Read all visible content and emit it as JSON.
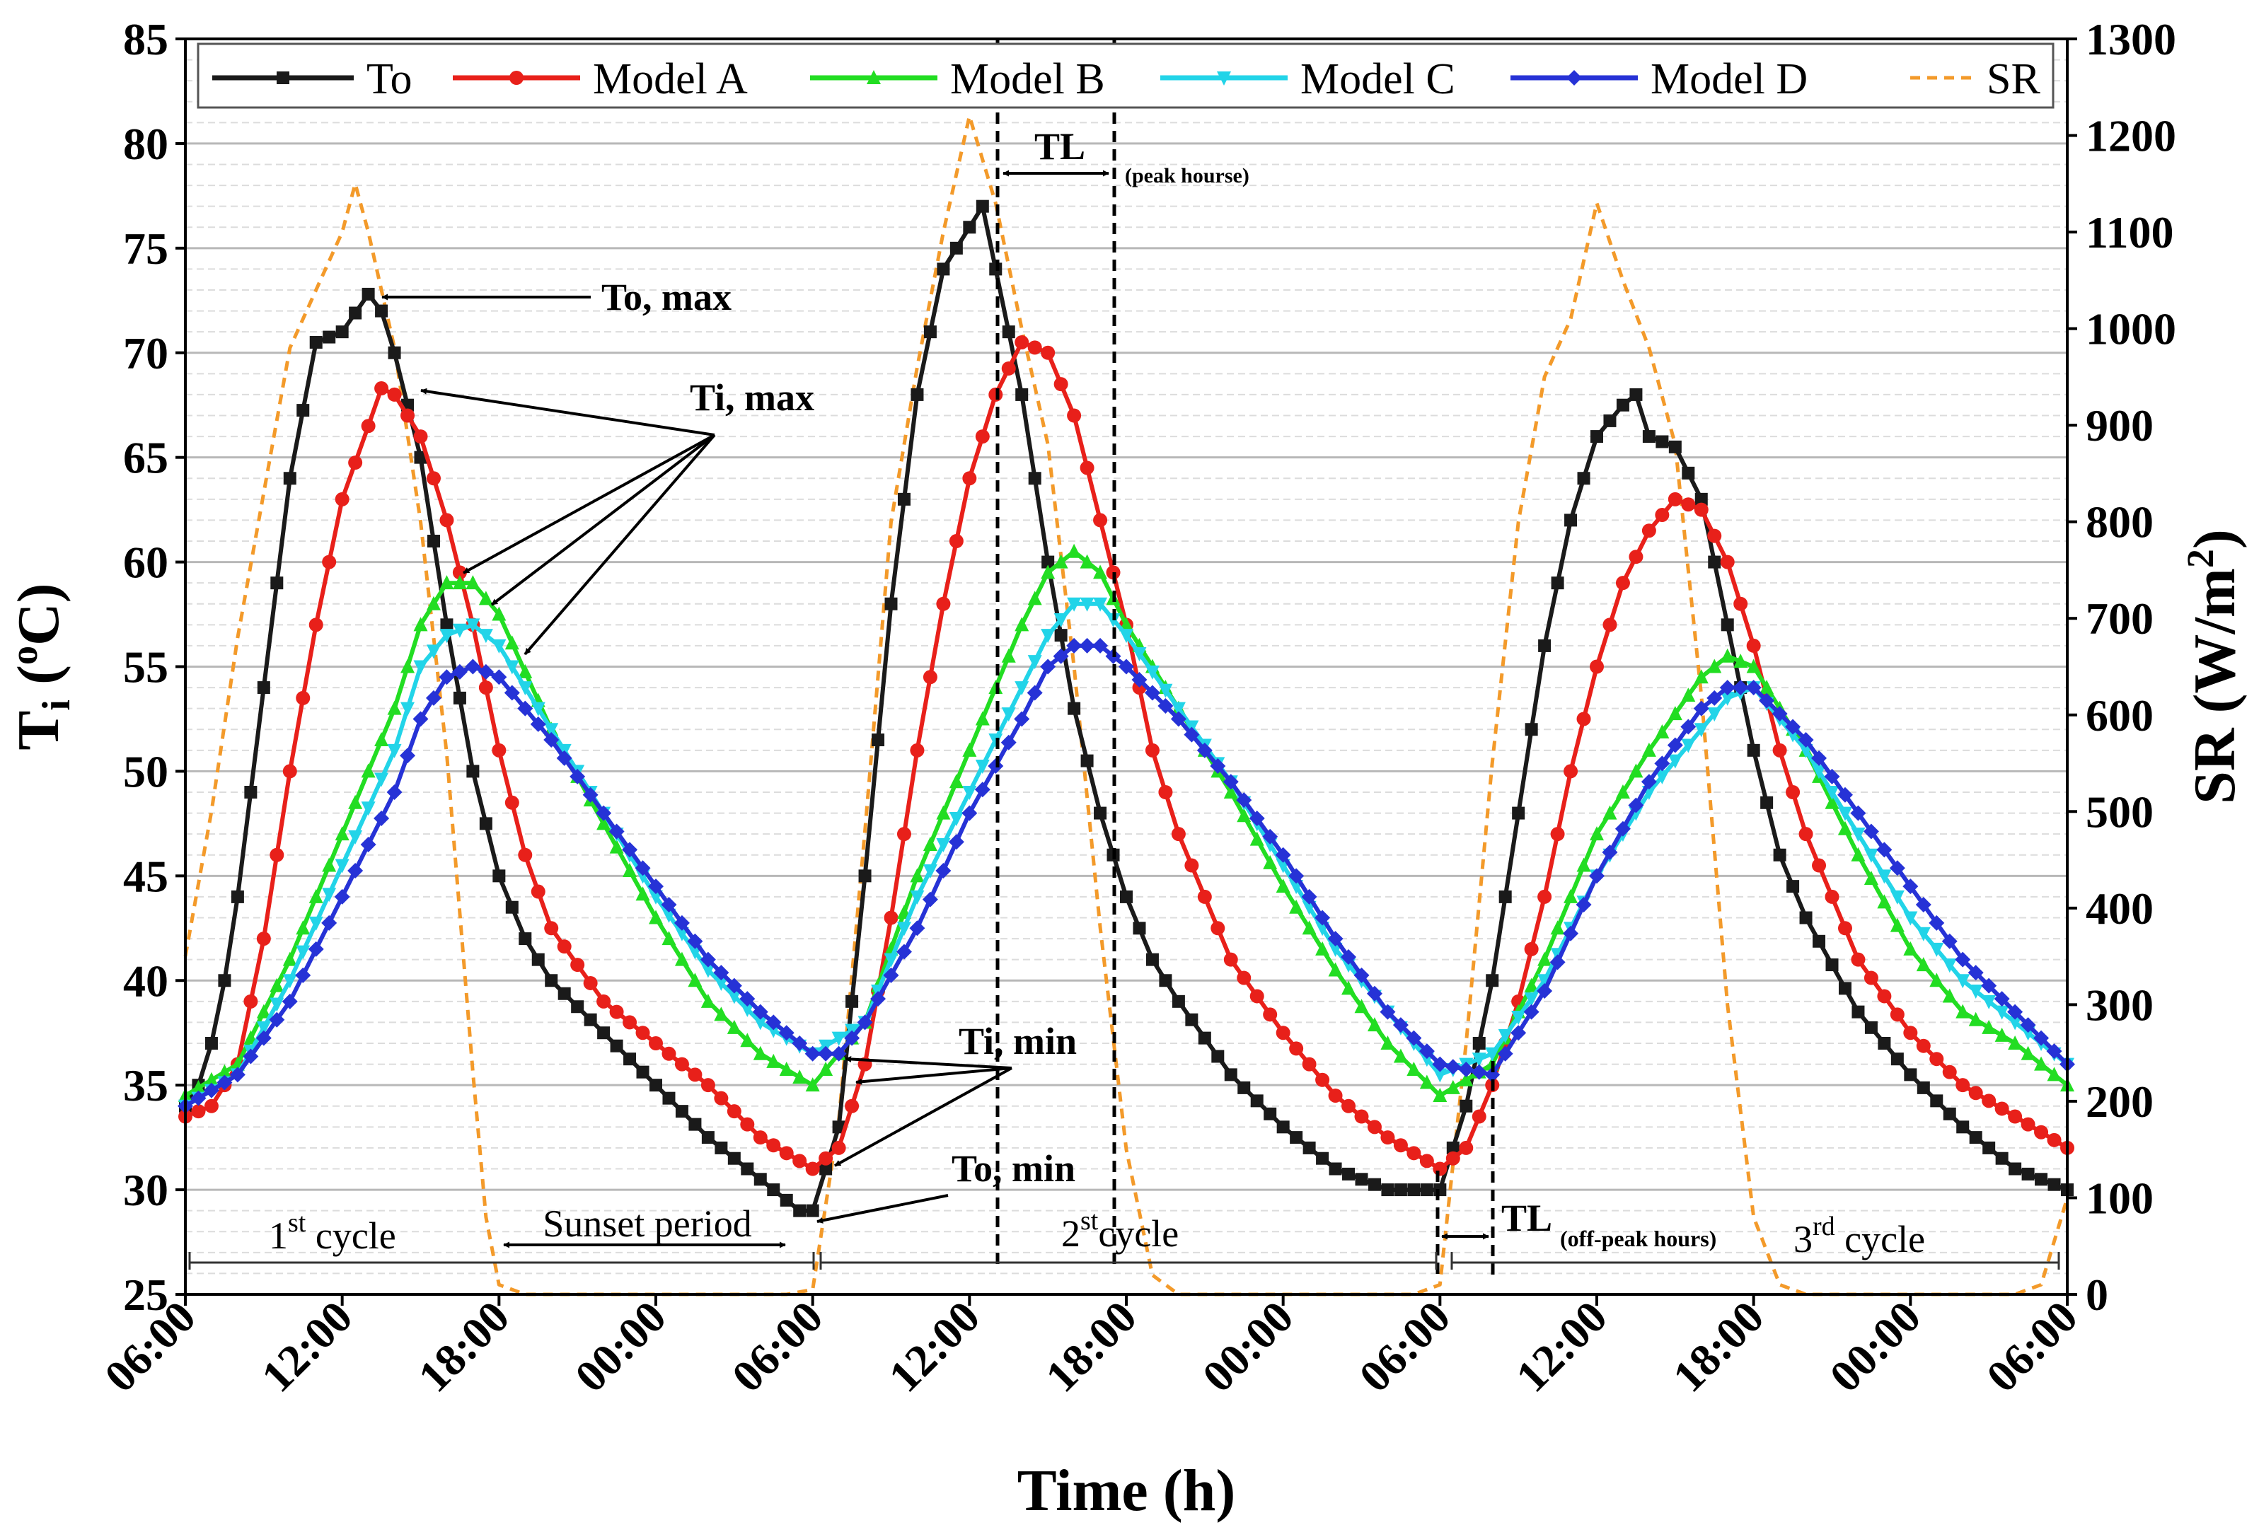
{
  "chart_data": {
    "type": "line",
    "title": "",
    "xlabel": "Time (h)",
    "ylabel_main": "T",
    "ylabel_sub": "i",
    "ylabel_unit_pre": " (",
    "ylabel_unit_sup": "o",
    "ylabel_unit_post": "C)",
    "y2label_main": "SR (W/m",
    "y2label_sup": "2",
    "y2label_post": ")",
    "x_hours_range": [
      0,
      72
    ],
    "x_ticks": [
      {
        "h": 0,
        "label": "06:00"
      },
      {
        "h": 6,
        "label": "12:00"
      },
      {
        "h": 12,
        "label": "18:00"
      },
      {
        "h": 18,
        "label": "00:00"
      },
      {
        "h": 24,
        "label": "06:00"
      },
      {
        "h": 30,
        "label": "12:00"
      },
      {
        "h": 36,
        "label": "18:00"
      },
      {
        "h": 42,
        "label": "00:00"
      },
      {
        "h": 48,
        "label": "06:00"
      },
      {
        "h": 54,
        "label": "12:00"
      },
      {
        "h": 60,
        "label": "18:00"
      },
      {
        "h": 66,
        "label": "00:00"
      },
      {
        "h": 72,
        "label": "06:00"
      }
    ],
    "ylim": [
      25,
      85
    ],
    "y_ticks": [
      25,
      30,
      35,
      40,
      45,
      50,
      55,
      60,
      65,
      70,
      75,
      80,
      85
    ],
    "y2lim": [
      0,
      1300
    ],
    "y2_ticks": [
      0,
      100,
      200,
      300,
      400,
      500,
      600,
      700,
      800,
      900,
      1000,
      1100,
      1200,
      1300
    ],
    "grid": true,
    "legend_position": "top",
    "series": [
      {
        "name": "To",
        "color": "#1a1a1a",
        "marker": "square",
        "dash": "",
        "axis": "left",
        "x": [
          0,
          0.5,
          1,
          1.5,
          2,
          3,
          4,
          5,
          6,
          7,
          7.5,
          8,
          9,
          10,
          11,
          12,
          13,
          14,
          16,
          18,
          20,
          22,
          23.5,
          24,
          25,
          26,
          27,
          28,
          29,
          30,
          30.5,
          31,
          32,
          33,
          34,
          35,
          36,
          37,
          38,
          40,
          42,
          44,
          46,
          48,
          49,
          50,
          51,
          52,
          53,
          54,
          55,
          55.5,
          56,
          57,
          58,
          59,
          60,
          61,
          62,
          64,
          66,
          68,
          70,
          72
        ],
        "y": [
          34,
          35,
          37,
          40,
          44,
          54,
          64,
          70.5,
          71,
          72.8,
          72,
          70,
          65,
          57,
          50,
          45,
          42,
          40,
          37.5,
          35,
          32.5,
          30.5,
          29,
          29,
          33,
          45,
          58,
          68,
          74,
          76,
          77,
          74,
          68,
          60,
          53,
          48,
          44,
          41,
          39,
          35.5,
          33,
          31,
          30,
          30,
          34,
          40,
          48,
          56,
          62,
          66,
          67.5,
          68,
          66,
          65.5,
          63,
          57,
          51,
          46,
          43,
          38.5,
          35.5,
          33,
          31,
          30
        ]
      },
      {
        "name": "Model A",
        "color": "#e8201a",
        "marker": "circle",
        "dash": "",
        "axis": "left",
        "x": [
          0,
          1,
          2,
          3,
          4,
          5,
          6,
          7,
          7.5,
          8,
          9,
          10,
          11,
          12,
          13,
          14,
          16,
          18,
          20,
          22,
          24,
          25,
          26,
          27,
          28,
          29,
          30,
          31,
          32,
          33,
          34,
          35,
          36,
          37,
          38,
          40,
          42,
          44,
          46,
          48,
          49,
          50,
          51,
          52,
          53,
          54,
          55,
          56,
          57,
          58,
          59,
          60,
          61,
          62,
          64,
          66,
          68,
          70,
          72
        ],
        "y": [
          33.5,
          34,
          36,
          42,
          50,
          57,
          63,
          66.5,
          68.3,
          68,
          66,
          62,
          57,
          51,
          46,
          42.5,
          39,
          37,
          35,
          32.5,
          31,
          32,
          36,
          43,
          51,
          58,
          64,
          68,
          70.5,
          70,
          67,
          62,
          57,
          51,
          47,
          41,
          37.5,
          34.5,
          32.5,
          31,
          32,
          35,
          39,
          44,
          50,
          55,
          59,
          61.5,
          63,
          62.5,
          60,
          56,
          51,
          47,
          41,
          37.5,
          35,
          33.5,
          32
        ]
      },
      {
        "name": "Model B",
        "color": "#22dd22",
        "marker": "triangle",
        "dash": "",
        "axis": "left",
        "x": [
          0,
          2,
          4,
          6,
          8,
          9,
          10,
          11,
          12,
          14,
          16,
          18,
          20,
          22,
          24,
          26,
          28,
          30,
          32,
          33,
          34,
          35,
          36,
          38,
          40,
          42,
          44,
          46,
          48,
          50,
          52,
          54,
          56,
          58,
          59,
          60,
          62,
          64,
          66,
          68,
          70,
          72
        ],
        "y": [
          34.5,
          36,
          41,
          47,
          53,
          57,
          59,
          59,
          57.5,
          52,
          47.5,
          43,
          39,
          36.5,
          35,
          38,
          45,
          51,
          57,
          59.5,
          60.5,
          59.5,
          57,
          53,
          49,
          44.5,
          40.5,
          37,
          34.5,
          36,
          41,
          47,
          51,
          54.5,
          55.5,
          55,
          51,
          46,
          41.5,
          38.5,
          37,
          35
        ]
      },
      {
        "name": "Model C",
        "color": "#22d4e8",
        "marker": "tri-down",
        "dash": "",
        "axis": "left",
        "x": [
          0,
          2,
          4,
          6,
          8,
          9,
          10,
          11,
          12,
          14,
          16,
          18,
          20,
          22,
          24,
          26,
          28,
          30,
          32,
          33,
          34,
          35,
          36,
          38,
          40,
          42,
          44,
          46,
          48,
          50,
          52,
          54,
          56,
          58,
          59,
          60,
          62,
          64,
          66,
          68,
          70,
          72
        ],
        "y": [
          34,
          35.5,
          40,
          45.5,
          51,
          55,
          56.5,
          57,
          56,
          52,
          48,
          44,
          40.5,
          38,
          36.5,
          38,
          44,
          49,
          54,
          56.5,
          58,
          58,
          56.5,
          53,
          49.5,
          45.5,
          41.5,
          38.5,
          35.5,
          36.5,
          40,
          45,
          49,
          52,
          53.5,
          54,
          51,
          47,
          43,
          40,
          38,
          36
        ]
      },
      {
        "name": "Model D",
        "color": "#2632d6",
        "marker": "diamond",
        "dash": "",
        "axis": "left",
        "x": [
          0,
          2,
          4,
          6,
          8,
          9,
          10,
          11,
          12,
          14,
          16,
          18,
          20,
          22,
          24,
          25,
          26,
          28,
          30,
          32,
          33,
          34,
          35,
          36,
          38,
          40,
          42,
          44,
          46,
          48,
          50,
          52,
          54,
          56,
          58,
          59,
          60,
          62,
          64,
          66,
          68,
          70,
          72
        ],
        "y": [
          34,
          35.5,
          39,
          44,
          49,
          52.5,
          54.5,
          55,
          54.5,
          51.5,
          48,
          44.5,
          41,
          38.5,
          36.5,
          36.5,
          38,
          42.5,
          48,
          52.5,
          55,
          56,
          56,
          55,
          52.5,
          49.5,
          46,
          42,
          38.5,
          36,
          35.5,
          39.5,
          45,
          49.5,
          53,
          54,
          54,
          51.5,
          48,
          44.5,
          41,
          38.5,
          36
        ]
      },
      {
        "name": "SR",
        "color": "#f39a2a",
        "marker": "none",
        "dash": "14 10",
        "axis": "right",
        "x": [
          0,
          1,
          2,
          3,
          4,
          5,
          6,
          6.5,
          7,
          8,
          9,
          10,
          11,
          11.5,
          12,
          13,
          14,
          16,
          18,
          20,
          22,
          23,
          24,
          25,
          26,
          27,
          28,
          29,
          30,
          31,
          32,
          33,
          34,
          35,
          36,
          37,
          38,
          40,
          42,
          44,
          46,
          47,
          48,
          49,
          50,
          51,
          52,
          53,
          54,
          55,
          56,
          57,
          58,
          59,
          60,
          61,
          62,
          64,
          66,
          68,
          70,
          71,
          72
        ],
        "y": [
          350,
          500,
          680,
          830,
          980,
          1040,
          1100,
          1150,
          1100,
          980,
          800,
          560,
          230,
          80,
          10,
          0,
          0,
          0,
          0,
          0,
          0,
          0,
          5,
          180,
          480,
          800,
          960,
          1100,
          1220,
          1130,
          1000,
          880,
          650,
          380,
          150,
          20,
          0,
          0,
          0,
          0,
          0,
          0,
          10,
          260,
          550,
          800,
          950,
          1010,
          1130,
          1050,
          980,
          880,
          620,
          300,
          80,
          10,
          0,
          0,
          0,
          0,
          0,
          10,
          100
        ]
      }
    ],
    "annotations": {
      "to_max": "To, max",
      "ti_max": "Ti, max",
      "ti_min": "Ti, min",
      "to_min": "To, min",
      "tl_peak_main": "TL",
      "tl_peak_sub": "(peak hourse)",
      "tl_off_main": "TL",
      "tl_off_sub": "(off-peak hours)",
      "sunset": "Sunset period",
      "cycle1_num": "1",
      "cycle1_sup": "st",
      "cycle1_word": " cycle",
      "cycle2_num": "2",
      "cycle2_sup": "st",
      "cycle2_word": "cycle",
      "cycle3_num": "3",
      "cycle3_sup": "rd",
      "cycle3_word": " cycle"
    }
  }
}
